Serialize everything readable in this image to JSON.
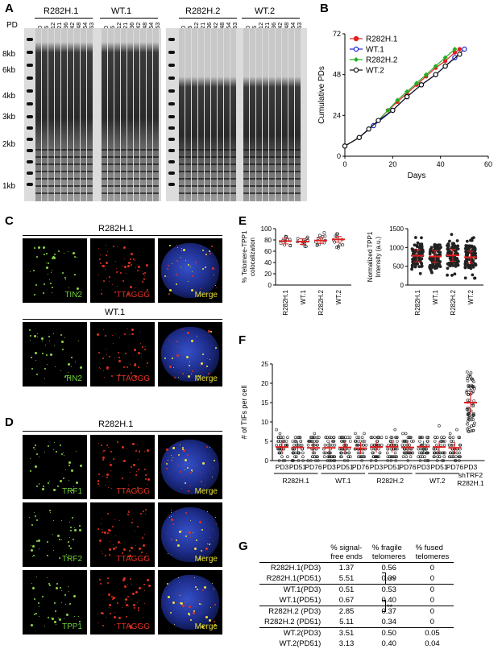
{
  "panels": {
    "a": "A",
    "b": "B",
    "c": "C",
    "d": "D",
    "e": "E",
    "f": "F",
    "g": "G"
  },
  "panelA": {
    "groups": [
      "R282H.1",
      "WT.1",
      "R282H.2",
      "WT.2"
    ],
    "pd_label": "PD",
    "pd_values": [
      "0",
      "6",
      "12",
      "21",
      "36",
      "42",
      "48",
      "54",
      "63"
    ],
    "markers": [
      "8kb",
      "6kb",
      "4kb",
      "3kb",
      "2kb",
      "1kb"
    ]
  },
  "chart_data": {
    "type": "line",
    "xlabel": "Days",
    "ylabel": "Cumulative PDs",
    "xlim": [
      0,
      60
    ],
    "ylim": [
      0,
      72
    ],
    "xticks": [
      "0",
      "20",
      "40",
      "60"
    ],
    "yticks": [
      "0",
      "24",
      "48",
      "72"
    ],
    "legend_position": "top-left",
    "series": [
      {
        "name": "R282H.1",
        "color": "#e02020",
        "marker": "circle",
        "x": [
          0,
          6,
          10,
          14,
          18,
          22,
          26,
          30,
          34,
          38,
          42,
          46,
          48
        ],
        "y": [
          6,
          11,
          16,
          21,
          27,
          32,
          37,
          42,
          47,
          52,
          56,
          61,
          63
        ]
      },
      {
        "name": "WT.1",
        "color": "#1f24d0",
        "marker": "open-circle",
        "x": [
          0,
          6,
          12,
          20,
          26,
          32,
          38,
          42,
          46,
          50
        ],
        "y": [
          6,
          11,
          18,
          27,
          35,
          42,
          48,
          53,
          58,
          63
        ]
      },
      {
        "name": "R282H.2",
        "color": "#22b022",
        "marker": "diamond",
        "x": [
          0,
          6,
          10,
          14,
          18,
          22,
          26,
          30,
          34,
          38,
          42,
          46
        ],
        "y": [
          6,
          11,
          16,
          21,
          27,
          33,
          38,
          43,
          48,
          53,
          58,
          63
        ]
      },
      {
        "name": "WT.2",
        "color": "#111111",
        "marker": "open-circle",
        "x": [
          0,
          6,
          10,
          14,
          20,
          26,
          32,
          38,
          42,
          48
        ],
        "y": [
          6,
          11,
          16,
          21,
          27,
          35,
          42,
          48,
          53,
          60
        ]
      }
    ]
  },
  "panelC": {
    "groups": [
      {
        "title": "R282H.1",
        "labels": [
          "TIN2",
          "TTAGGG",
          "Merge"
        ]
      },
      {
        "title": "WT.1",
        "labels": [
          "TIN2",
          "TTAGGG",
          "Merge"
        ]
      }
    ]
  },
  "panelD": {
    "title": "R282H.1",
    "rows": [
      {
        "labels": [
          "TRF1",
          "TTAGGG",
          "Merge"
        ]
      },
      {
        "labels": [
          "TRF2",
          "TTAGGG",
          "Merge"
        ]
      },
      {
        "labels": [
          "TPP1",
          "TTAGGG",
          "Merge"
        ]
      }
    ]
  },
  "panelE": {
    "left": {
      "ylabel": "% Telomere-TPP1 colocalization",
      "yticks": [
        "0",
        "20",
        "40",
        "60",
        "80",
        "100"
      ],
      "categories": [
        "R282H.1",
        "WT.1",
        "R282H.2",
        "WT.2"
      ],
      "means": [
        78,
        77,
        79,
        81
      ]
    },
    "right": {
      "ylabel": "Normalized TPP1 Intensity (a.u.)",
      "yticks": [
        "0",
        "500",
        "1000",
        "1500"
      ],
      "categories": [
        "R282H.1",
        "WT.1",
        "R282H.2",
        "WT.2"
      ],
      "means": [
        780,
        760,
        790,
        740
      ]
    }
  },
  "panelF": {
    "ylabel": "# of TIFs per cell",
    "yticks": [
      "0",
      "5",
      "10",
      "15",
      "20",
      "25"
    ],
    "pd_labels": [
      "PD3",
      "PD51",
      "PD76",
      "PD3",
      "PD51",
      "PD76",
      "PD3",
      "PD51",
      "PD76",
      "PD3",
      "PD51",
      "PD76"
    ],
    "groups": [
      "R282H.1",
      "WT.1",
      "R282H.2",
      "WT.2"
    ],
    "means": [
      3.5,
      3.4,
      3.3,
      3.3,
      3.4,
      3.2,
      3.5,
      3.6,
      3.4,
      3.6,
      3.5,
      3.3,
      15
    ],
    "last_label_1": "PD3",
    "last_label_2": "shTRF2",
    "last_label_3": "R282H.1"
  },
  "panelG": {
    "headers": [
      "% signal-\nfree ends",
      "% fragile\ntelomeres",
      "% fused\ntelomeres"
    ],
    "rows": [
      [
        "R282H.1(PD3)",
        "1.37",
        "0.56",
        "0"
      ],
      [
        "R282H.1(PD51)",
        "5.51",
        "0.39",
        "0"
      ],
      [
        "WT.1(PD3)",
        "0.51",
        "0.53",
        "0"
      ],
      [
        "WT.1(PD51)",
        "0.67",
        "0.40",
        "0"
      ],
      [
        "R282H.2 (PD3)",
        "2.85",
        "0.37",
        "0"
      ],
      [
        "R282H.2 (PD51)",
        "5.11",
        "0.34",
        "0"
      ],
      [
        "WT.2(PD3)",
        "3.51",
        "0.50",
        "0.05"
      ],
      [
        "WT.2(PD51)",
        "3.13",
        "0.40",
        "0.04"
      ]
    ],
    "sig1": "***",
    "sig2": "**"
  }
}
